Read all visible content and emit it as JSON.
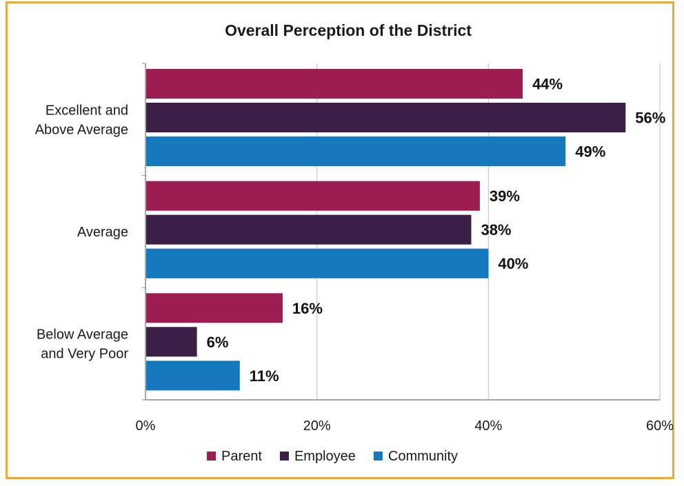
{
  "chart_data": {
    "type": "bar",
    "orientation": "horizontal",
    "title": "Overall Perception of the District",
    "categories": [
      [
        "Excellent and",
        "Above Average"
      ],
      [
        "Average"
      ],
      [
        "Below Average",
        "and Very Poor"
      ]
    ],
    "series": [
      {
        "name": "Parent",
        "color": "#9b1d52",
        "values": [
          44,
          39,
          16
        ],
        "labels": [
          "44%",
          "39%",
          "16%"
        ]
      },
      {
        "name": "Employee",
        "color": "#3b1f47",
        "values": [
          56,
          38,
          6
        ],
        "labels": [
          "56%",
          "38%",
          "6%"
        ]
      },
      {
        "name": "Community",
        "color": "#1578bd",
        "values": [
          49,
          40,
          11
        ],
        "labels": [
          "49%",
          "40%",
          "11%"
        ]
      }
    ],
    "xlim": [
      0,
      60
    ],
    "xticks": [
      0,
      20,
      40,
      60
    ],
    "xtick_labels": [
      "0%",
      "20%",
      "40%",
      "60%"
    ],
    "grid": true,
    "legend_position": "bottom"
  }
}
